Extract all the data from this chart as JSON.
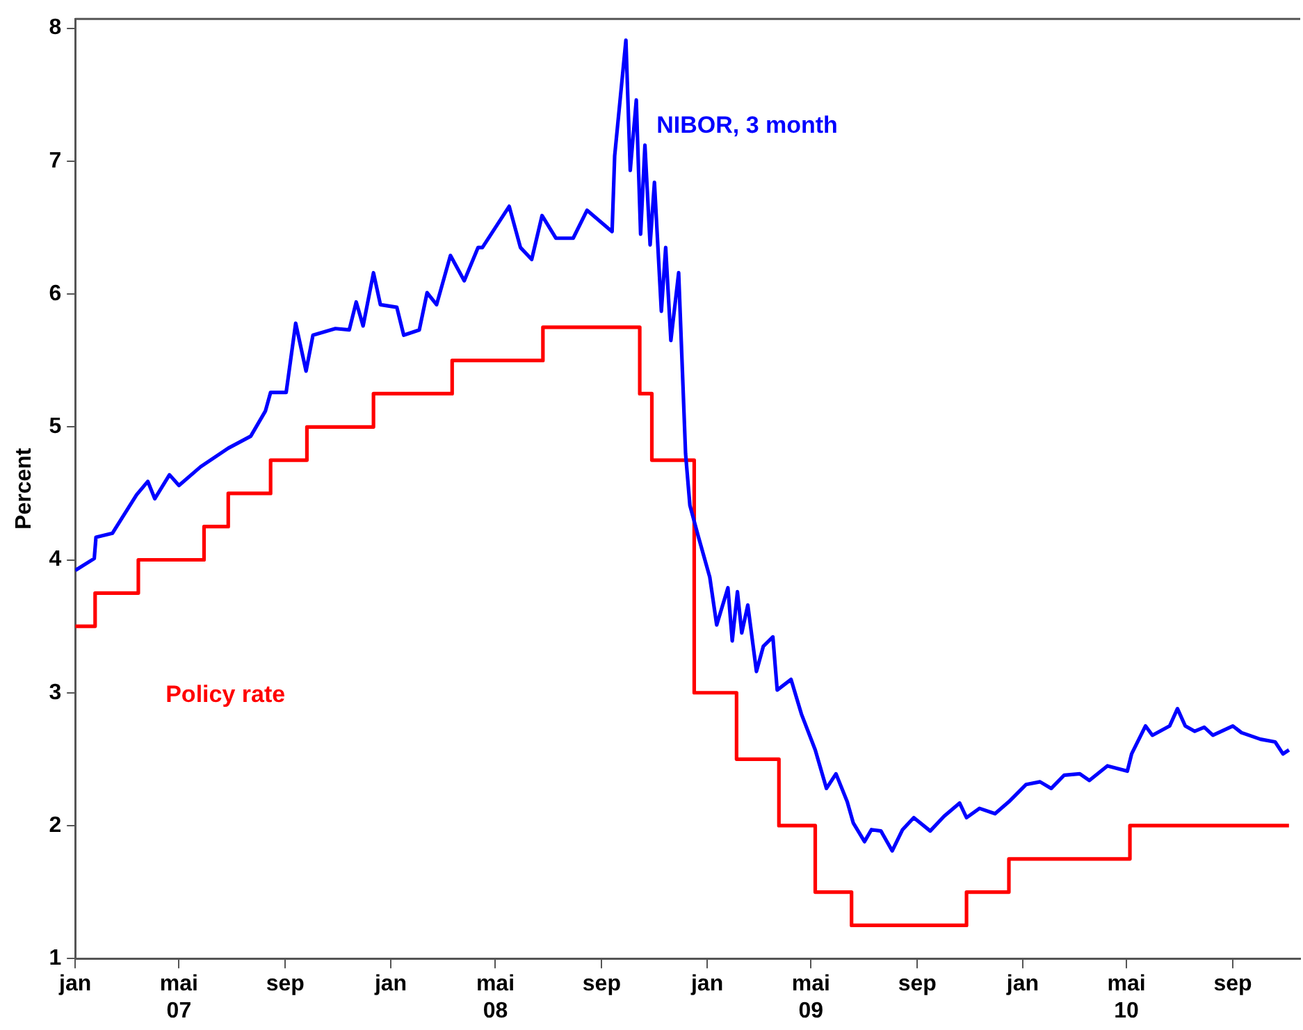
{
  "chart_data": {
    "type": "line",
    "ylabel": "Percent",
    "grid": false,
    "marker": "none",
    "line_style": "solid",
    "xlim": [
      "2007-01-01",
      "2010-11-18"
    ],
    "ylim": [
      1,
      8.07
    ],
    "yticks": [
      1,
      2,
      3,
      4,
      5,
      6,
      7,
      8
    ],
    "xticks": [
      {
        "value": "2007-01-01",
        "label": "jan"
      },
      {
        "value": "2007-05-01",
        "label": "mai\n07"
      },
      {
        "value": "2007-09-01",
        "label": "sep"
      },
      {
        "value": "2008-01-01",
        "label": "jan"
      },
      {
        "value": "2008-05-01",
        "label": "mai\n08"
      },
      {
        "value": "2008-09-01",
        "label": "sep"
      },
      {
        "value": "2009-01-01",
        "label": "jan"
      },
      {
        "value": "2009-05-01",
        "label": "mai\n09"
      },
      {
        "value": "2009-09-01",
        "label": "sep"
      },
      {
        "value": "2010-01-01",
        "label": "jan"
      },
      {
        "value": "2010-05-01",
        "label": "mai\n10"
      },
      {
        "value": "2010-09-01",
        "label": "sep"
      }
    ],
    "series": [
      {
        "name": "NIBOR, 3 month",
        "color": "#0000ff",
        "type": "line",
        "x": [
          "2007-01-01",
          "2007-01-23",
          "2007-01-25",
          "2007-02-13",
          "2007-03-13",
          "2007-03-26",
          "2007-04-03",
          "2007-04-20",
          "2007-05-01",
          "2007-05-26",
          "2007-06-27",
          "2007-07-23",
          "2007-08-09",
          "2007-08-15",
          "2007-09-02",
          "2007-09-13",
          "2007-09-25",
          "2007-10-03",
          "2007-10-29",
          "2007-11-14",
          "2007-11-22",
          "2007-11-30",
          "2007-12-12",
          "2007-12-20",
          "2008-01-08",
          "2008-01-16",
          "2008-02-03",
          "2008-02-12",
          "2008-02-23",
          "2008-03-10",
          "2008-03-26",
          "2008-04-11",
          "2008-04-16",
          "2008-05-17",
          "2008-05-30",
          "2008-06-12",
          "2008-06-24",
          "2008-07-10",
          "2008-07-30",
          "2008-08-15",
          "2008-09-13",
          "2008-09-16",
          "2008-09-29",
          "2008-10-04",
          "2008-10-11",
          "2008-10-16",
          "2008-10-21",
          "2008-10-27",
          "2008-11-01",
          "2008-11-09",
          "2008-11-14",
          "2008-11-20",
          "2008-11-29",
          "2008-12-07",
          "2008-12-12",
          "2008-12-22",
          "2009-01-04",
          "2009-01-12",
          "2009-01-25",
          "2009-01-30",
          "2009-02-05",
          "2009-02-10",
          "2009-02-17",
          "2009-02-27",
          "2009-03-07",
          "2009-03-18",
          "2009-03-23",
          "2009-04-08",
          "2009-04-20",
          "2009-05-06",
          "2009-05-19",
          "2009-05-30",
          "2009-06-12",
          "2009-06-19",
          "2009-07-02",
          "2009-07-10",
          "2009-07-21",
          "2009-08-03",
          "2009-08-15",
          "2009-08-28",
          "2009-09-16",
          "2009-10-02",
          "2009-10-20",
          "2009-10-28",
          "2009-11-12",
          "2009-11-30",
          "2009-12-16",
          "2010-01-05",
          "2010-01-21",
          "2010-02-03",
          "2010-02-18",
          "2010-03-08",
          "2010-03-19",
          "2010-04-09",
          "2010-05-02",
          "2010-05-07",
          "2010-05-23",
          "2010-05-31",
          "2010-06-20",
          "2010-06-29",
          "2010-07-08",
          "2010-07-19",
          "2010-07-30",
          "2010-08-09",
          "2010-09-01",
          "2010-09-11",
          "2010-10-03",
          "2010-10-20",
          "2010-10-29",
          "2010-11-05"
        ],
        "values": [
          3.92,
          4.01,
          4.17,
          4.2,
          4.49,
          4.59,
          4.46,
          4.64,
          4.56,
          4.7,
          4.84,
          4.93,
          5.12,
          5.26,
          5.26,
          5.78,
          5.42,
          5.69,
          5.74,
          5.73,
          5.94,
          5.76,
          6.16,
          5.92,
          5.9,
          5.69,
          5.73,
          6.01,
          5.92,
          6.29,
          6.1,
          6.35,
          6.35,
          6.66,
          6.35,
          6.26,
          6.59,
          6.42,
          6.42,
          6.63,
          6.47,
          7.04,
          7.91,
          6.93,
          7.46,
          6.45,
          7.12,
          6.37,
          6.84,
          5.87,
          6.35,
          5.65,
          6.16,
          4.8,
          4.41,
          4.17,
          3.87,
          3.51,
          3.79,
          3.39,
          3.76,
          3.45,
          3.66,
          3.16,
          3.35,
          3.42,
          3.02,
          3.1,
          2.84,
          2.57,
          2.28,
          2.39,
          2.18,
          2.02,
          1.88,
          1.97,
          1.96,
          1.81,
          1.97,
          2.06,
          1.96,
          2.07,
          2.17,
          2.06,
          2.13,
          2.09,
          2.18,
          2.31,
          2.33,
          2.28,
          2.38,
          2.39,
          2.34,
          2.45,
          2.41,
          2.54,
          2.75,
          2.68,
          2.75,
          2.88,
          2.75,
          2.71,
          2.74,
          2.68,
          2.75,
          2.7,
          2.65,
          2.63,
          2.54,
          2.57
        ]
      },
      {
        "name": "Policy rate",
        "color": "#ff0000",
        "type": "step",
        "x": [
          "2007-01-01",
          "2007-01-24",
          "2007-03-15",
          "2007-05-30",
          "2007-06-27",
          "2007-08-15",
          "2007-09-26",
          "2007-12-12",
          "2008-03-12",
          "2008-06-25",
          "2008-10-15",
          "2008-10-29",
          "2008-12-17",
          "2009-02-04",
          "2009-03-25",
          "2009-05-06",
          "2009-06-17",
          "2009-10-28",
          "2009-12-16",
          "2010-05-05",
          "2010-11-05"
        ],
        "values": [
          3.5,
          3.75,
          4,
          4.25,
          4.5,
          4.75,
          5,
          5.25,
          5.5,
          5.75,
          5.25,
          4.75,
          3,
          2.5,
          2,
          1.5,
          1.25,
          1.5,
          1.75,
          2,
          2
        ]
      }
    ]
  }
}
